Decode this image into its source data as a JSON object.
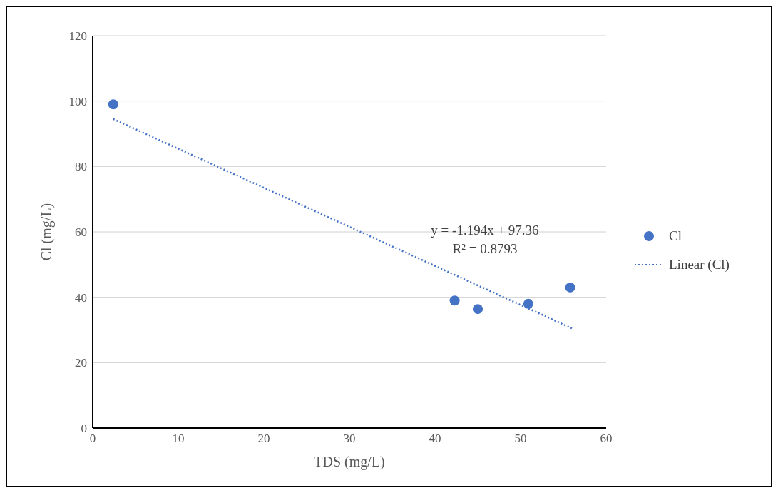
{
  "chart_data": {
    "type": "scatter",
    "xlabel": "TDS (mg/L)",
    "ylabel": "Cl (mg/L)",
    "xlim": [
      0,
      60
    ],
    "xticks": [
      0,
      10,
      20,
      30,
      40,
      50,
      60
    ],
    "ylim": [
      0,
      120
    ],
    "yticks": [
      0,
      20,
      40,
      60,
      80,
      100,
      120
    ],
    "grid": "y",
    "legend": "right",
    "marker": "circle",
    "series": [
      {
        "name": "Cl",
        "color": "#4472c4",
        "x": [
          2.4,
          42.3,
          45,
          50.9,
          55.8
        ],
        "values": [
          99,
          39,
          36.4,
          38,
          43
        ]
      },
      {
        "name": "Linear (Cl)",
        "type": "line",
        "marker": "none",
        "line_style": "dotted",
        "color": "#4472c4",
        "x": [
          2.4,
          56
        ],
        "values": [
          94.5,
          30.5
        ]
      }
    ],
    "annotations": [
      "y = -1.194x + 97.36",
      "R² = 0.8793"
    ]
  }
}
